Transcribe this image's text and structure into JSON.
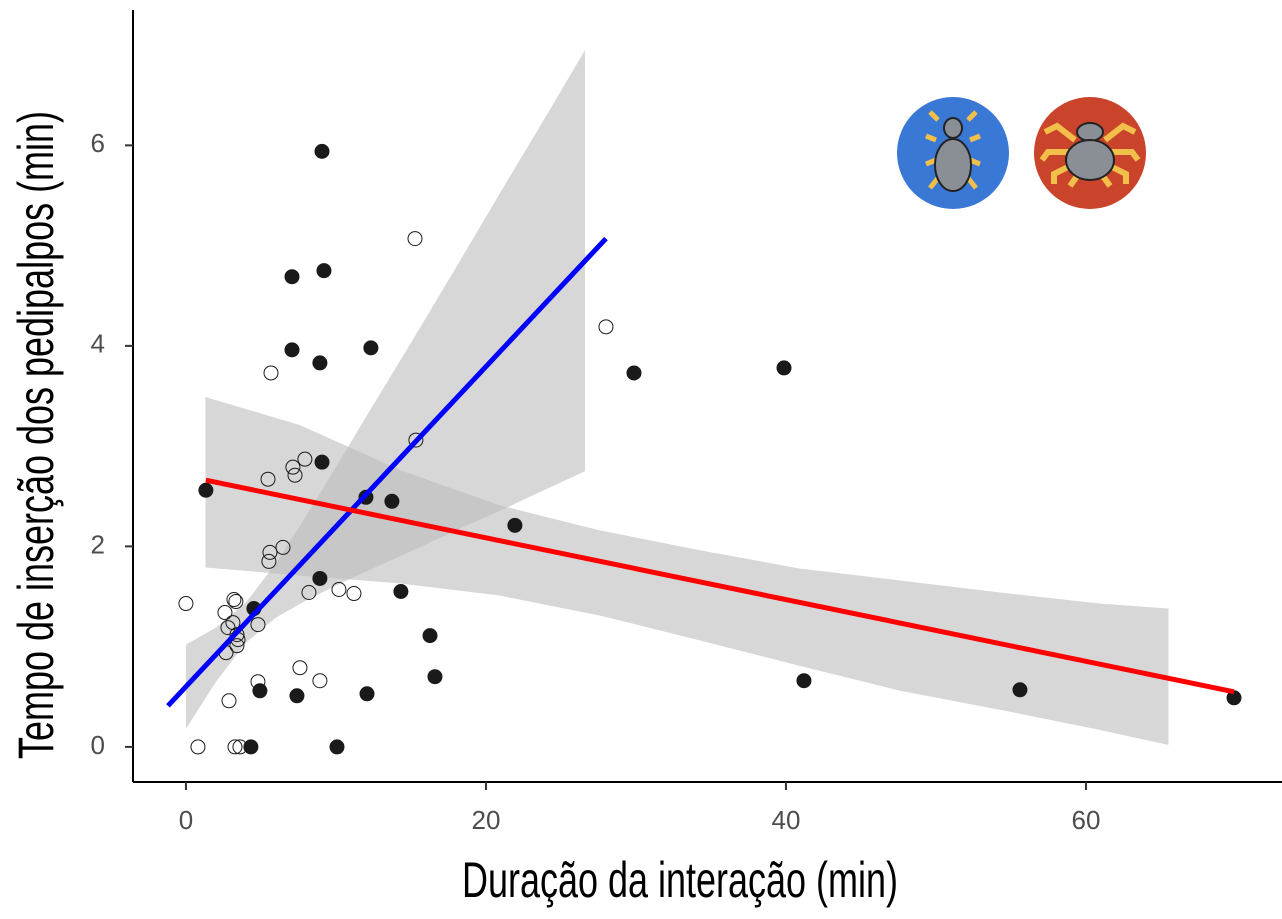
{
  "chart_data": {
    "type": "scatter",
    "x_label": "Duração da interação (min)",
    "y_label": "Tempo de inserção dos pedipalpos (min)",
    "xlim": [
      -3.53,
      73.07
    ],
    "ylim": [
      -0.35,
      7.35
    ],
    "xticks": [
      0,
      20,
      40,
      60
    ],
    "yticks": [
      0,
      2,
      4,
      6
    ],
    "series": [
      {
        "marker": "filled",
        "color": "#1a1a1a",
        "x": [
          9.07,
          7.07,
          9.2,
          7.07,
          8.93,
          12.33,
          29.87,
          39.87,
          9.07,
          1.33,
          12.0,
          13.73,
          21.93,
          8.93,
          14.33,
          4.53,
          16.27,
          16.6,
          41.2,
          55.6,
          69.87,
          4.93,
          7.4,
          12.07,
          4.33,
          10.07
        ],
        "values": [
          5.94,
          4.69,
          4.75,
          3.96,
          3.83,
          3.98,
          3.73,
          3.78,
          2.84,
          2.56,
          2.49,
          2.45,
          2.21,
          1.68,
          1.55,
          1.38,
          1.11,
          0.7,
          0.66,
          0.57,
          0.49,
          0.56,
          0.51,
          0.53,
          0,
          0
        ]
      },
      {
        "marker": "open",
        "color": "#1a1a1a",
        "x": [
          15.27,
          28.0,
          5.67,
          15.33,
          7.93,
          7.13,
          7.27,
          5.47,
          6.47,
          5.6,
          5.53,
          10.2,
          8.2,
          11.2,
          0,
          3.2,
          3.33,
          2.6,
          4.8,
          3.13,
          2.8,
          3.4,
          3.47,
          3.4,
          2.67,
          7.6,
          8.93,
          4.8,
          2.87,
          0.8,
          3.27,
          3.6
        ],
        "values": [
          5.07,
          4.19,
          3.73,
          3.06,
          2.87,
          2.79,
          2.71,
          2.67,
          1.99,
          1.94,
          1.85,
          1.57,
          1.54,
          1.53,
          1.43,
          1.47,
          1.45,
          1.34,
          1.22,
          1.24,
          1.19,
          1.12,
          1.07,
          1.01,
          0.94,
          0.79,
          0.66,
          0.65,
          0.46,
          0,
          0,
          0
        ]
      }
    ],
    "fits": [
      {
        "color": "#0000ff",
        "x": [
          -1.2,
          28
        ],
        "values": [
          0.41,
          5.07
        ],
        "band": {
          "color": "#bdbdbd",
          "x": [
            0,
            2,
            4,
            6,
            8,
            10,
            12,
            15,
            18,
            21,
            24,
            26.6
          ],
          "upper": [
            1.02,
            1.19,
            1.44,
            1.83,
            2.3,
            2.79,
            3.29,
            4.03,
            4.78,
            5.54,
            6.29,
            6.95
          ],
          "lower": [
            0.18,
            0.65,
            1.04,
            1.29,
            1.46,
            1.61,
            1.75,
            1.95,
            2.16,
            2.36,
            2.57,
            2.75
          ]
        }
      },
      {
        "color": "#ff0000",
        "x": [
          1.33,
          69.87
        ],
        "values": [
          2.66,
          0.55
        ],
        "band": {
          "color": "#bdbdbd",
          "x": [
            1.3,
            7.6,
            14.3,
            20.9,
            27.6,
            34.3,
            40.9,
            47.6,
            54.3,
            60.9,
            65.5
          ],
          "upper": [
            3.49,
            3.21,
            2.76,
            2.41,
            2.16,
            1.96,
            1.78,
            1.66,
            1.54,
            1.43,
            1.38
          ],
          "lower": [
            1.79,
            1.71,
            1.63,
            1.51,
            1.31,
            1.06,
            0.81,
            0.56,
            0.37,
            0.17,
            0.02
          ]
        }
      }
    ]
  }
}
